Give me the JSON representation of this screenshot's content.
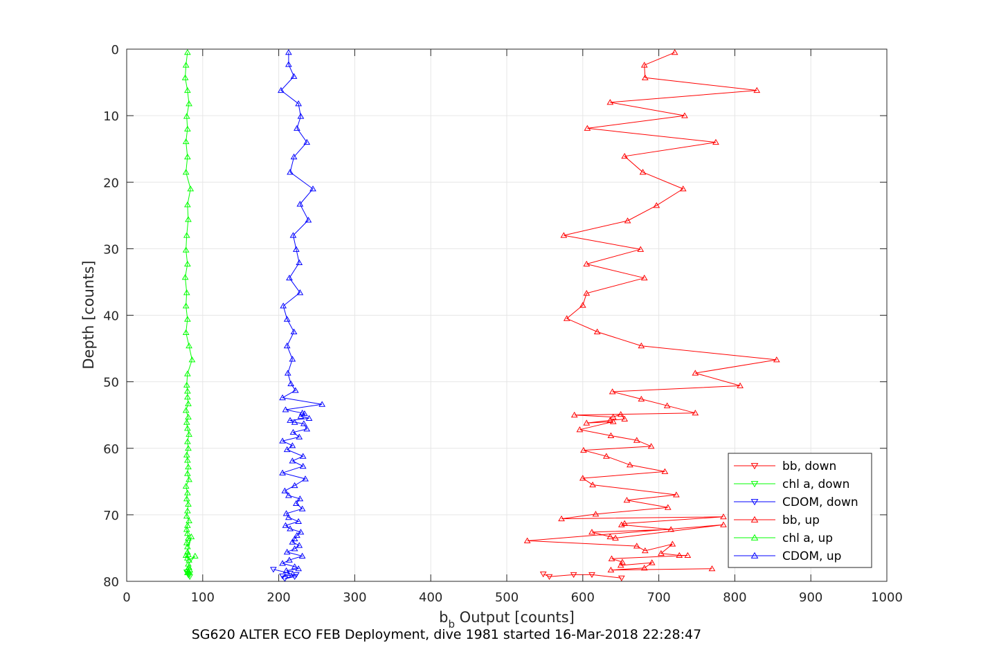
{
  "chart_data": {
    "type": "line",
    "title": "",
    "caption": "SG620 ALTER ECO FEB Deployment, dive 1981 started 16-Mar-2018 22:28:47",
    "xlabel_main": "b",
    "xlabel_sub": "b",
    "xlabel_rest": " Output [counts]",
    "ylabel": "Depth [counts]",
    "xlim": [
      0,
      1000
    ],
    "ylim": [
      0,
      80
    ],
    "y_reversed": true,
    "grid": true,
    "x_ticks": [
      "0",
      "100",
      "200",
      "300",
      "400",
      "500",
      "600",
      "700",
      "800",
      "900",
      "1000"
    ],
    "y_ticks": [
      "0",
      "10",
      "20",
      "30",
      "40",
      "50",
      "60",
      "70",
      "80"
    ],
    "legend_position": "bottom-right",
    "legend": [
      {
        "label": "bb, down",
        "color": "#ff0000",
        "marker": "triangle-down"
      },
      {
        "label": "chl a, down",
        "color": "#00ff00",
        "marker": "triangle-down"
      },
      {
        "label": "CDOM, down",
        "color": "#0000ff",
        "marker": "triangle-down"
      },
      {
        "label": "bb, up",
        "color": "#ff0000",
        "marker": "triangle-up"
      },
      {
        "label": "chl a, up",
        "color": "#00ff00",
        "marker": "triangle-up"
      },
      {
        "label": "CDOM, up",
        "color": "#0000ff",
        "marker": "triangle-up"
      }
    ],
    "series": [
      {
        "key": "bb_down",
        "color": "#ff0000",
        "marker": "triangle-down",
        "x": [
          548,
          556,
          588,
          612,
          651
        ],
        "y": [
          78.9,
          79.3,
          79.0,
          79.0,
          79.5
        ]
      },
      {
        "key": "chl_down",
        "color": "#00ff00",
        "marker": "triangle-down",
        "x": [
          80,
          82,
          79,
          83,
          81
        ],
        "y": [
          78.8,
          79.1,
          78.6,
          79.3,
          79.0
        ]
      },
      {
        "key": "cdom_down",
        "color": "#0000ff",
        "marker": "triangle-down",
        "x": [
          193,
          215,
          205,
          223,
          208,
          221
        ],
        "y": [
          78.2,
          78.8,
          79.2,
          79.0,
          79.6,
          79.3
        ]
      },
      {
        "key": "bb_up",
        "color": "#ff0000",
        "marker": "triangle-up",
        "x": [
          721,
          681,
          682,
          829,
          636,
          734,
          606,
          775,
          655,
          679,
          732,
          697,
          659,
          575,
          676,
          605,
          681,
          605,
          600,
          579,
          619,
          677,
          855,
          748,
          807,
          639,
          677,
          711,
          748,
          589,
          640,
          650,
          655,
          636,
          605,
          640,
          596,
          637,
          671,
          690,
          601,
          631,
          662,
          708,
          600,
          613,
          723,
          658,
          712,
          617,
          572,
          785,
          655,
          651,
          716,
          612,
          636,
          643,
          785,
          527,
          671,
          682,
          718,
          703,
          727,
          738,
          638,
          652,
          650,
          691,
          681,
          637,
          770
        ],
        "y": [
          0.5,
          2.4,
          4.3,
          6.2,
          8.0,
          10.0,
          11.9,
          14.0,
          16.1,
          18.5,
          21.0,
          23.5,
          25.8,
          28.0,
          30.1,
          32.3,
          34.4,
          36.7,
          38.5,
          40.5,
          42.5,
          44.6,
          46.7,
          48.7,
          50.6,
          51.5,
          52.6,
          53.6,
          54.7,
          55.0,
          55.3,
          54.9,
          55.6,
          55.8,
          56.2,
          56.0,
          57.2,
          58.1,
          58.8,
          59.7,
          60.3,
          61.2,
          62.5,
          63.5,
          64.5,
          65.5,
          67.0,
          67.8,
          68.9,
          69.9,
          70.6,
          70.3,
          71.3,
          71.5,
          72.2,
          72.6,
          73.3,
          73.5,
          71.5,
          73.9,
          74.7,
          75.4,
          74.4,
          75.8,
          76.1,
          76.1,
          76.6,
          77.1,
          77.6,
          77.2,
          78.0,
          78.3,
          78.1
        ]
      },
      {
        "key": "chl_up",
        "color": "#00ff00",
        "marker": "triangle-up",
        "x": [
          80,
          78,
          77,
          80,
          82,
          79,
          80,
          78,
          80,
          78,
          84,
          80,
          81,
          79,
          78,
          80,
          77,
          79,
          78,
          80,
          78,
          82,
          86,
          80,
          79,
          80,
          80,
          81,
          78,
          81,
          79,
          80,
          82,
          80,
          81,
          79,
          80,
          81,
          80,
          82,
          78,
          80,
          79,
          81,
          80,
          79,
          82,
          80,
          79,
          80,
          81,
          79,
          80,
          85,
          80,
          81,
          80,
          78,
          82,
          90,
          81,
          82,
          80,
          81,
          83,
          80
        ],
        "y": [
          0.5,
          2.4,
          4.3,
          6.2,
          8.2,
          10.1,
          12.0,
          13.9,
          16.2,
          18.5,
          21.0,
          23.4,
          25.6,
          28.0,
          30.2,
          32.3,
          34.3,
          36.6,
          38.6,
          40.6,
          42.6,
          44.6,
          46.7,
          48.8,
          50.5,
          51.4,
          52.3,
          53.3,
          54.3,
          55.3,
          56.1,
          57.0,
          57.9,
          59.0,
          60.0,
          61.0,
          61.8,
          62.8,
          63.8,
          64.7,
          65.7,
          66.7,
          67.6,
          68.4,
          69.4,
          70.2,
          70.9,
          71.6,
          72.2,
          72.8,
          73.5,
          74.2,
          74.8,
          73.3,
          75.6,
          76.0,
          76.5,
          76.1,
          76.8,
          76.2,
          77.4,
          77.9,
          78.2,
          78.5,
          78.3,
          78.7
        ]
      },
      {
        "key": "cdom_up",
        "color": "#0000ff",
        "marker": "triangle-up",
        "x": [
          213,
          213,
          220,
          203,
          226,
          229,
          224,
          237,
          220,
          215,
          245,
          228,
          239,
          219,
          223,
          227,
          214,
          228,
          206,
          211,
          220,
          211,
          218,
          212,
          216,
          222,
          205,
          257,
          209,
          231,
          234,
          229,
          240,
          215,
          221,
          233,
          237,
          219,
          227,
          205,
          218,
          211,
          232,
          218,
          232,
          205,
          235,
          221,
          208,
          213,
          228,
          223,
          231,
          210,
          213,
          226,
          209,
          215,
          229,
          224,
          221,
          218,
          227,
          221,
          211,
          231,
          214,
          205,
          221,
          226,
          210
        ],
        "y": [
          0.5,
          2.3,
          4.1,
          6.2,
          8.2,
          10.1,
          11.9,
          14.0,
          16.2,
          18.5,
          21.0,
          23.3,
          25.7,
          28.0,
          30.1,
          32.1,
          34.4,
          36.6,
          38.6,
          40.6,
          42.5,
          44.6,
          46.6,
          48.7,
          50.3,
          51.3,
          52.4,
          53.4,
          54.2,
          54.7,
          54.8,
          55.2,
          55.5,
          55.8,
          56.1,
          56.3,
          57.1,
          57.6,
          58.3,
          58.9,
          59.6,
          60.2,
          61.2,
          61.9,
          62.7,
          63.7,
          64.6,
          65.6,
          66.4,
          67.1,
          67.6,
          68.3,
          69.1,
          69.8,
          70.4,
          71.0,
          71.6,
          72.1,
          72.6,
          73.1,
          73.6,
          74.1,
          74.6,
          75.1,
          75.6,
          76.2,
          76.8,
          77.3,
          77.8,
          78.1,
          78.4
        ]
      }
    ]
  }
}
